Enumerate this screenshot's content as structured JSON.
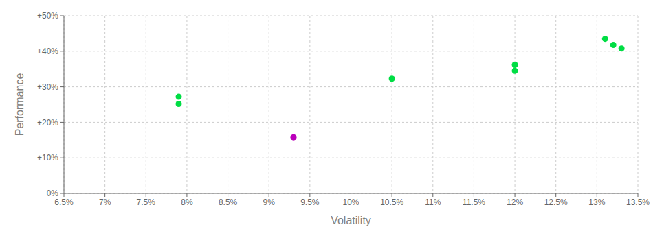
{
  "chart_data": {
    "type": "scatter",
    "xlabel": "Volatility",
    "ylabel": "Performance",
    "xlim": [
      0.065,
      0.135
    ],
    "ylim": [
      0.0,
      0.5
    ],
    "xticks": [
      {
        "value": 0.065,
        "label": "6.5%"
      },
      {
        "value": 0.07,
        "label": "7%"
      },
      {
        "value": 0.075,
        "label": "7.5%"
      },
      {
        "value": 0.08,
        "label": "8%"
      },
      {
        "value": 0.085,
        "label": "8.5%"
      },
      {
        "value": 0.09,
        "label": "9%"
      },
      {
        "value": 0.095,
        "label": "9.5%"
      },
      {
        "value": 0.1,
        "label": "10%"
      },
      {
        "value": 0.105,
        "label": "10.5%"
      },
      {
        "value": 0.11,
        "label": "11%"
      },
      {
        "value": 0.115,
        "label": "11.5%"
      },
      {
        "value": 0.12,
        "label": "12%"
      },
      {
        "value": 0.125,
        "label": "12.5%"
      },
      {
        "value": 0.13,
        "label": "13%"
      },
      {
        "value": 0.135,
        "label": "13.5%"
      }
    ],
    "yticks": [
      {
        "value": 0.0,
        "label": "0%"
      },
      {
        "value": 0.1,
        "label": "+10%"
      },
      {
        "value": 0.2,
        "label": "+20%"
      },
      {
        "value": 0.3,
        "label": "+30%"
      },
      {
        "value": 0.4,
        "label": "+40%"
      },
      {
        "value": 0.5,
        "label": "+50%"
      }
    ],
    "grid": true,
    "series": [
      {
        "color": "#00dd44",
        "x": [
          0.079,
          0.079,
          0.105,
          0.12,
          0.12,
          0.131,
          0.132,
          0.133
        ],
        "values": [
          0.272,
          0.252,
          0.323,
          0.362,
          0.345,
          0.435,
          0.418,
          0.408
        ]
      },
      {
        "color": "#bb00bb",
        "x": [
          0.093
        ],
        "values": [
          0.158
        ]
      }
    ]
  }
}
